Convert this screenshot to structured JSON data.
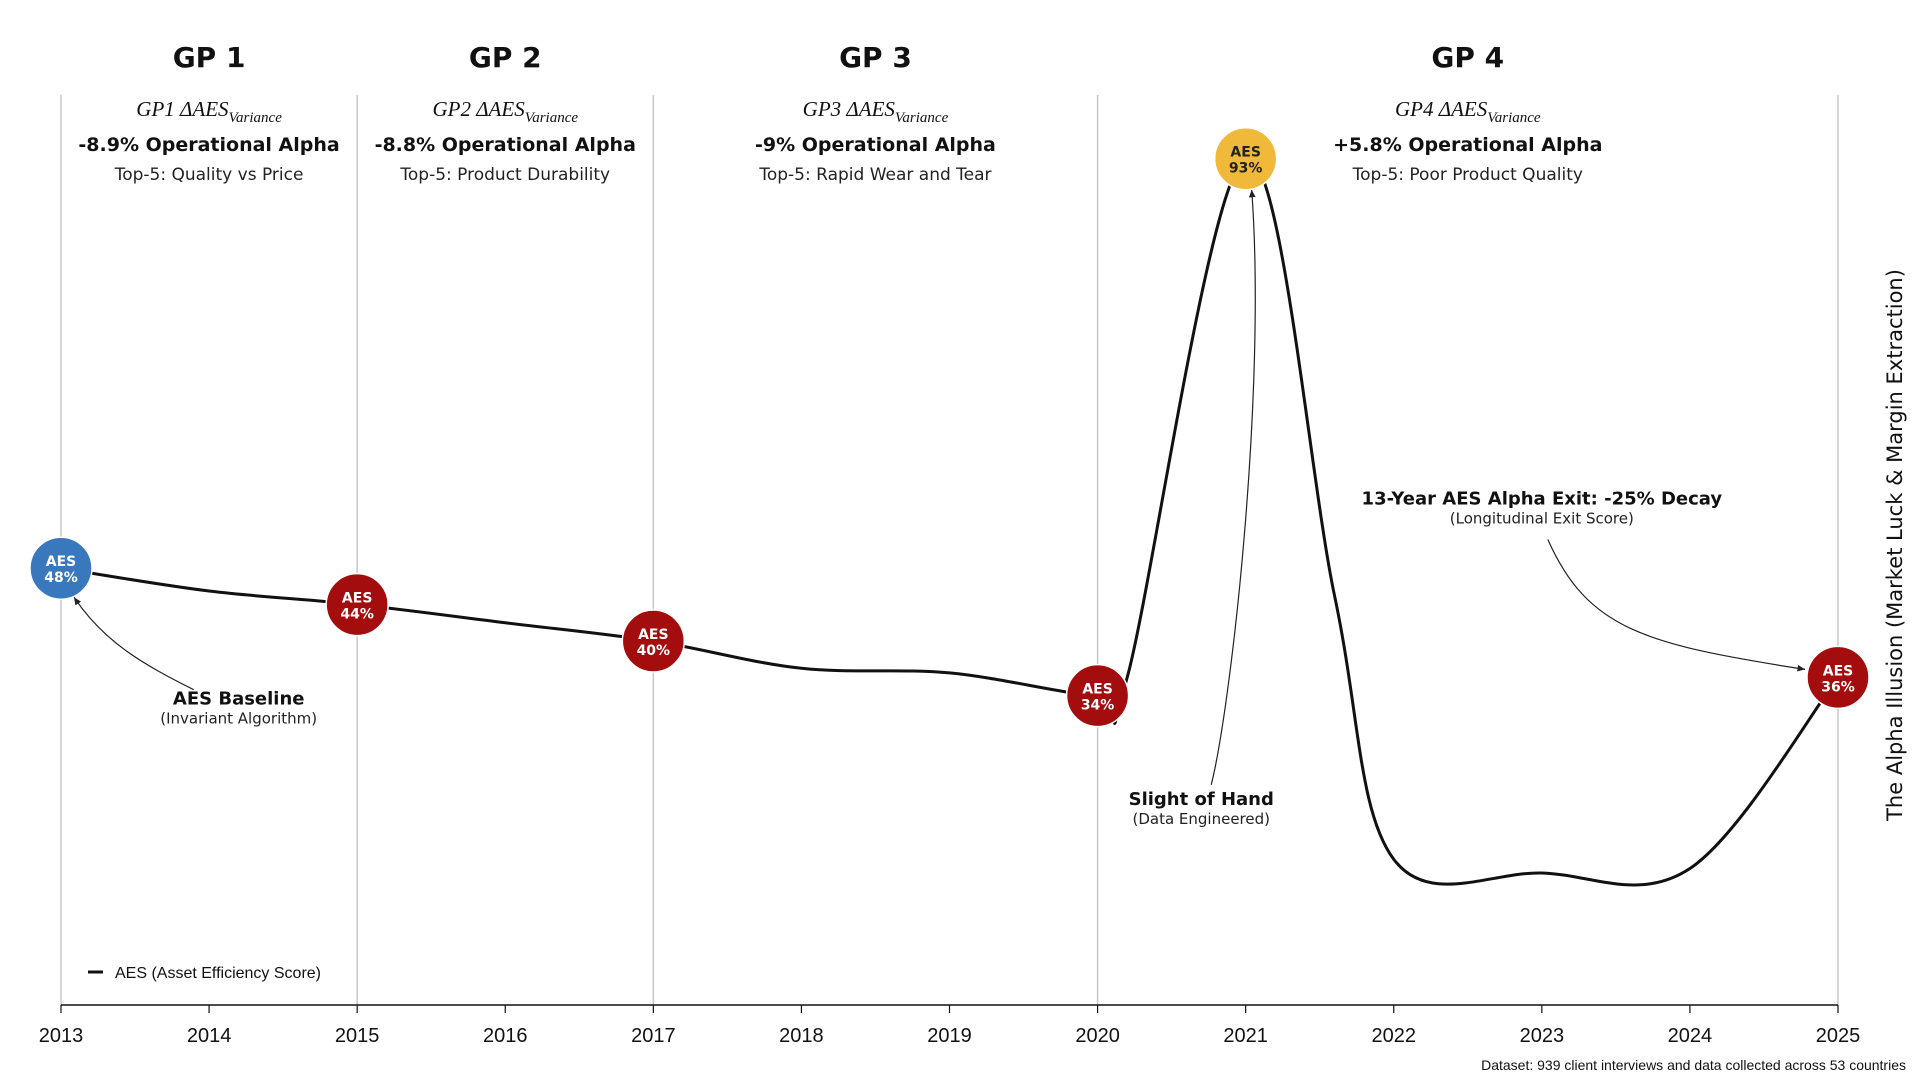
{
  "chart_data": {
    "type": "line",
    "x": [
      2013,
      2014,
      2015,
      2016,
      2017,
      2018,
      2019,
      2020,
      2021,
      2022,
      2023,
      2024,
      2025
    ],
    "xlim": [
      2013,
      2025
    ],
    "ylim": [
      0,
      100
    ],
    "grid": false,
    "legend": {
      "position": "bottom-left",
      "label": "AES (Asset Efficiency Score)"
    },
    "series": [
      {
        "name": "AES (Asset Efficiency Score)",
        "points": [
          [
            2013,
            48
          ],
          [
            2014,
            45.5
          ],
          [
            2015,
            44
          ],
          [
            2016,
            42
          ],
          [
            2017,
            40
          ],
          [
            2018,
            37
          ],
          [
            2019,
            36.5
          ],
          [
            2020,
            34
          ],
          [
            2020.2,
            36
          ],
          [
            2021,
            93
          ],
          [
            2021.6,
            45
          ],
          [
            2022,
            16
          ],
          [
            2023,
            14.5
          ],
          [
            2024,
            15
          ],
          [
            2025,
            36
          ]
        ]
      }
    ],
    "badges": [
      {
        "x": 2013,
        "y": 48,
        "line1": "AES",
        "line2": "48%",
        "fill": "#3a78be",
        "text_color": "#ffffff"
      },
      {
        "x": 2015,
        "y": 44,
        "line1": "AES",
        "line2": "44%",
        "fill": "#a30d0d",
        "text_color": "#ffffff"
      },
      {
        "x": 2017,
        "y": 40,
        "line1": "AES",
        "line2": "40%",
        "fill": "#a30d0d",
        "text_color": "#ffffff"
      },
      {
        "x": 2020,
        "y": 34,
        "line1": "AES",
        "line2": "34%",
        "fill": "#a30d0d",
        "text_color": "#ffffff"
      },
      {
        "x": 2021,
        "y": 93,
        "line1": "AES",
        "line2": "93%",
        "fill": "#f1b93a",
        "text_color": "#222222"
      },
      {
        "x": 2025,
        "y": 36,
        "line1": "AES",
        "line2": "36%",
        "fill": "#a30d0d",
        "text_color": "#ffffff"
      }
    ],
    "periods": [
      {
        "title": "GP 1",
        "formula": "GP1 ΔAES",
        "subscript": "Variance",
        "alpha": "-8.9% Operational Alpha",
        "top5": "Top-5: Quality vs Price",
        "x_start": 2013,
        "x_end": 2015
      },
      {
        "title": "GP 2",
        "formula": "GP2 ΔAES",
        "subscript": "Variance",
        "alpha": "-8.8% Operational Alpha",
        "top5": "Top-5: Product Durability",
        "x_start": 2015,
        "x_end": 2017
      },
      {
        "title": "GP 3",
        "formula": "GP3 ΔAES",
        "subscript": "Variance",
        "alpha": "-9% Operational Alpha",
        "top5": "Top-5: Rapid Wear and Tear",
        "x_start": 2017,
        "x_end": 2020
      },
      {
        "title": "GP 4",
        "formula": "GP4 ΔAES",
        "subscript": "Variance",
        "alpha": "+5.8% Operational Alpha",
        "top5": "Top-5: Poor Product Quality",
        "x_start": 2020,
        "x_end": 2025
      }
    ],
    "period_boundaries": [
      2013,
      2015,
      2017,
      2020,
      2025
    ],
    "annotations": [
      {
        "title": "AES Baseline",
        "subtitle": "(Invariant Algorithm)",
        "points_to": [
          2013,
          48
        ],
        "text_at": [
          2014.2,
          33
        ]
      },
      {
        "title": "Slight of Hand",
        "subtitle": "(Data Engineered)",
        "points_to": [
          2021,
          93
        ],
        "text_at": [
          2020.7,
          22
        ]
      },
      {
        "title": "13-Year AES Alpha Exit: -25% Decay",
        "subtitle": "(Longitudinal Exit Score)",
        "points_to": [
          2025,
          36
        ],
        "text_at": [
          2023,
          55
        ]
      }
    ],
    "ylabel": "The Alpha Illusion (Market Luck & Margin Extraction)",
    "footnote": "Dataset: 939 client interviews and data collected across 53 countries"
  }
}
